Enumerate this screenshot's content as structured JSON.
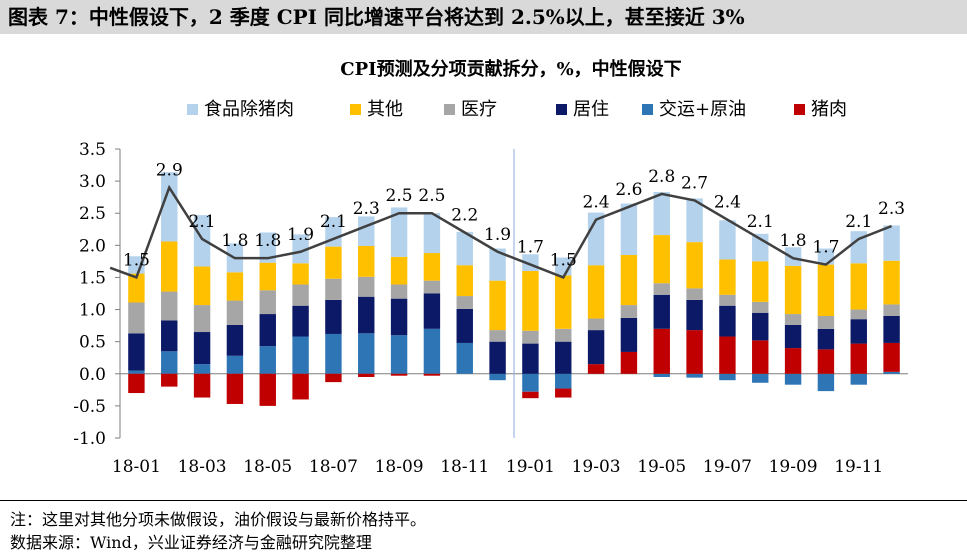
{
  "figure_title": "图表 7：中性假设下，2 季度 CPI 同比增速平台将达到 2.5%以上，甚至接近 3%",
  "note": "注：这里对其他分项未做假设，油价假设与最新价格持平。",
  "source": "数据来源：Wind，兴业证券经济与金融研究院整理",
  "colors": {
    "food_ex_pork": "#b4d2ec",
    "other": "#ffc000",
    "medical": "#a6a6a6",
    "housing": "#0b1966",
    "transport_oil": "#2e75b6",
    "pork": "#c00000",
    "cpi_line": "#404040"
  },
  "chart_data": {
    "type": "bar",
    "title": "CPI预测及分项贡献拆分，%，中性假设下",
    "stacked": true,
    "ylim": [
      -1.0,
      3.5
    ],
    "yticks": [
      "-1.0",
      "-0.5",
      "0.0",
      "0.5",
      "1.0",
      "1.5",
      "2.0",
      "2.5",
      "3.0",
      "3.5"
    ],
    "categories": [
      "18-01",
      "18-02",
      "18-03",
      "18-04",
      "18-05",
      "18-06",
      "18-07",
      "18-08",
      "18-09",
      "18-10",
      "18-11",
      "18-12",
      "19-01",
      "19-02",
      "19-03",
      "19-04",
      "19-05",
      "19-06",
      "19-07",
      "19-08",
      "19-09",
      "19-10",
      "19-11",
      "19-12"
    ],
    "xtick_labels": [
      "18-01",
      "18-03",
      "18-05",
      "18-07",
      "18-09",
      "18-11",
      "19-01",
      "19-03",
      "19-05",
      "19-07",
      "19-09",
      "19-11"
    ],
    "legend": [
      "食品除猪肉",
      "其他",
      "医疗",
      "居住",
      "交运+原油",
      "猪肉"
    ],
    "series": [
      {
        "name": "交运+原油",
        "key": "transport_oil",
        "values": [
          0.05,
          0.35,
          0.15,
          0.28,
          0.43,
          0.58,
          0.62,
          0.63,
          0.6,
          0.7,
          0.48,
          -0.1,
          -0.28,
          -0.23,
          0.0,
          0.0,
          -0.05,
          -0.06,
          -0.1,
          -0.14,
          -0.17,
          -0.27,
          -0.17,
          0.03
        ]
      },
      {
        "name": "猪肉",
        "key": "pork",
        "values": [
          -0.3,
          -0.2,
          -0.37,
          -0.47,
          -0.5,
          -0.4,
          -0.13,
          -0.05,
          -0.03,
          -0.03,
          0.0,
          0.0,
          -0.1,
          -0.14,
          0.15,
          0.34,
          0.7,
          0.68,
          0.58,
          0.52,
          0.4,
          0.38,
          0.47,
          0.45
        ]
      },
      {
        "name": "居住",
        "key": "housing",
        "values": [
          0.58,
          0.48,
          0.5,
          0.48,
          0.5,
          0.48,
          0.53,
          0.57,
          0.57,
          0.55,
          0.53,
          0.5,
          0.47,
          0.5,
          0.53,
          0.53,
          0.53,
          0.47,
          0.48,
          0.43,
          0.36,
          0.32,
          0.38,
          0.42
        ]
      },
      {
        "name": "医疗",
        "key": "medical",
        "values": [
          0.48,
          0.45,
          0.42,
          0.38,
          0.37,
          0.33,
          0.33,
          0.31,
          0.22,
          0.2,
          0.2,
          0.18,
          0.2,
          0.2,
          0.18,
          0.2,
          0.18,
          0.18,
          0.17,
          0.17,
          0.17,
          0.2,
          0.15,
          0.18
        ]
      },
      {
        "name": "其他",
        "key": "other",
        "values": [
          0.45,
          0.78,
          0.6,
          0.44,
          0.43,
          0.33,
          0.5,
          0.48,
          0.43,
          0.43,
          0.48,
          0.77,
          0.93,
          0.83,
          0.83,
          0.78,
          0.75,
          0.72,
          0.55,
          0.63,
          0.75,
          0.8,
          0.72,
          0.68
        ]
      },
      {
        "name": "食品除猪肉",
        "key": "food_ex_pork",
        "values": [
          0.27,
          1.08,
          0.8,
          0.45,
          0.47,
          0.45,
          0.46,
          0.46,
          0.77,
          0.62,
          0.52,
          0.5,
          0.26,
          0.28,
          0.82,
          0.8,
          0.67,
          0.68,
          0.61,
          0.43,
          0.29,
          0.25,
          0.5,
          0.55
        ]
      }
    ],
    "line": {
      "name": "CPI",
      "x": [
        -0.8,
        0,
        1,
        2,
        3,
        4,
        5,
        6,
        7,
        8,
        9,
        10,
        11,
        12,
        13,
        14,
        15,
        16,
        17,
        18,
        19,
        20,
        21,
        22,
        23
      ],
      "values": [
        1.65,
        1.5,
        2.9,
        2.1,
        1.8,
        1.8,
        1.9,
        2.1,
        2.3,
        2.5,
        2.5,
        2.2,
        1.9,
        1.7,
        1.5,
        2.4,
        2.6,
        2.8,
        2.7,
        2.4,
        2.1,
        1.8,
        1.7,
        2.1,
        2.3
      ]
    },
    "data_labels": [
      {
        "text": "1.5",
        "i": 0,
        "y": 1.5
      },
      {
        "text": "2.9",
        "i": 1,
        "y": 2.9
      },
      {
        "text": "2.1",
        "i": 2,
        "y": 2.1
      },
      {
        "text": "1.8",
        "i": 3,
        "y": 1.8
      },
      {
        "text": "1.8",
        "i": 4,
        "y": 1.8
      },
      {
        "text": "1.9",
        "i": 5,
        "y": 1.9
      },
      {
        "text": "2.1",
        "i": 6,
        "y": 2.1
      },
      {
        "text": "2.3",
        "i": 7,
        "y": 2.3
      },
      {
        "text": "2.5",
        "i": 8,
        "y": 2.5
      },
      {
        "text": "2.5",
        "i": 9,
        "y": 2.5
      },
      {
        "text": "2.2",
        "i": 10,
        "y": 2.2
      },
      {
        "text": "1.9",
        "i": 11,
        "y": 1.9
      },
      {
        "text": "1.7",
        "i": 12,
        "y": 1.7
      },
      {
        "text": "1.5",
        "i": 13,
        "y": 1.5
      },
      {
        "text": "2.4",
        "i": 14,
        "y": 2.4
      },
      {
        "text": "2.6",
        "i": 15,
        "y": 2.6
      },
      {
        "text": "2.8",
        "i": 16,
        "y": 2.8
      },
      {
        "text": "2.7",
        "i": 17,
        "y": 2.7
      },
      {
        "text": "2.4",
        "i": 18,
        "y": 2.4
      },
      {
        "text": "2.1",
        "i": 19,
        "y": 2.1
      },
      {
        "text": "1.8",
        "i": 20,
        "y": 1.8
      },
      {
        "text": "1.7",
        "i": 21,
        "y": 1.7
      },
      {
        "text": "2.1",
        "i": 22,
        "y": 2.1
      },
      {
        "text": "2.3",
        "i": 23,
        "y": 2.3
      }
    ],
    "forecast_divider_after": "18-12"
  }
}
